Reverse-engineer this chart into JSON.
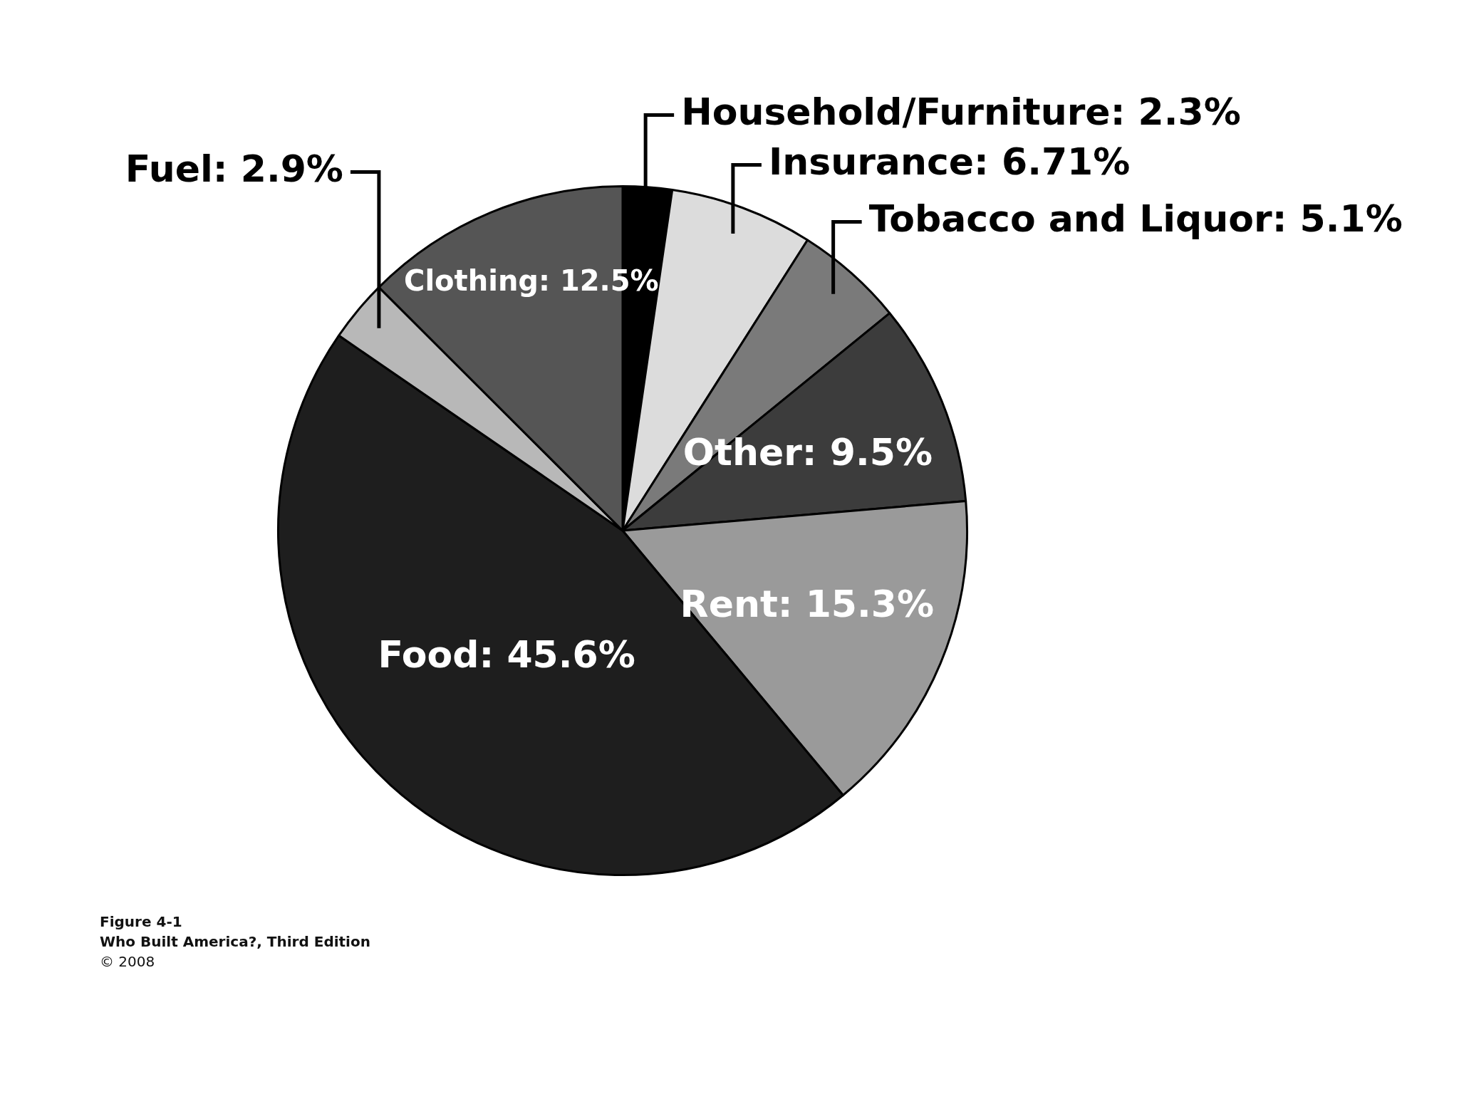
{
  "chart_data": {
    "type": "pie",
    "categories": [
      "Household/Furniture",
      "Insurance",
      "Tobacco and Liquor",
      "Other",
      "Rent",
      "Food",
      "Fuel",
      "Clothing"
    ],
    "values": [
      2.3,
      6.71,
      5.1,
      9.5,
      15.3,
      45.6,
      2.9,
      12.5
    ],
    "value_labels": [
      "2.3%",
      "6.71%",
      "5.1%",
      "9.5%",
      "15.3%",
      "45.6%",
      "2.9%",
      "12.5%"
    ],
    "colors": [
      "#000000",
      "#dcdcdc",
      "#7a7a7a",
      "#3c3c3c",
      "#9a9a9a",
      "#1e1e1e",
      "#b8b8b8",
      "#555555"
    ],
    "annotations": [
      "Figure 4-1",
      "Who Built America?, Third Edition",
      "© 2008"
    ]
  }
}
